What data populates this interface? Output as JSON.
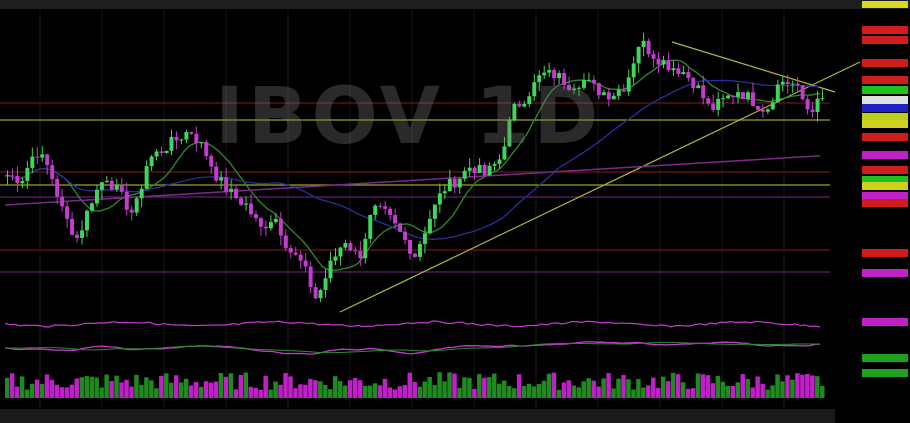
{
  "watermark": "IBOV 1D",
  "colors": {
    "up": "#3fd65a",
    "down": "#c43ccf",
    "background": "#000000",
    "ma_short": "#2e8b2e",
    "ma_long": "#2a2f9a",
    "ma_200": "#7a2a8a",
    "trendline": "#b5b53a",
    "support": "#c8c830",
    "resistance": "#8a1c1c"
  },
  "chart_data": {
    "type": "candlestick",
    "title": "IBOV 1D",
    "close_keypoints": [
      121100,
      120800,
      122900,
      121500,
      118300,
      116600,
      119400,
      121100,
      119700,
      118300,
      122200,
      122900,
      123600,
      124300,
      122900,
      120800,
      119700,
      119000,
      117300,
      118300,
      115900,
      114800,
      112300,
      114800,
      116600,
      115200,
      118700,
      118300,
      116900,
      115500,
      118000,
      120100,
      120800,
      121800,
      121100,
      122200,
      125700,
      126800,
      128200,
      128200,
      127500,
      127800,
      127100,
      126800,
      127500,
      130600,
      129600,
      128900,
      128500,
      127500,
      125700,
      126400,
      127100,
      126400,
      125700,
      127800,
      127500,
      125700,
      126400
    ],
    "indicators": [
      "moving-average-short",
      "moving-average-long",
      "moving-average-200",
      "rsi",
      "oscillator",
      "volume"
    ],
    "grid": true
  }
}
